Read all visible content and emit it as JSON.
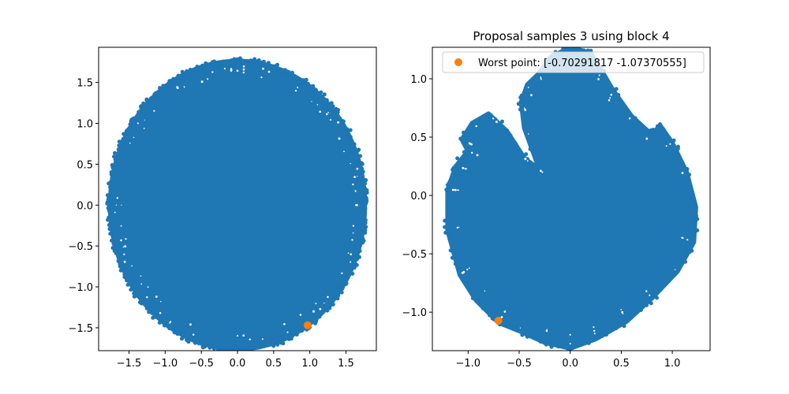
{
  "colors": {
    "samples": "#1f77b4",
    "worst_point": "#ff7f0e",
    "axes": "#000000",
    "background": "#ffffff",
    "legend_border": "#cccccc"
  },
  "chart_data": [
    {
      "type": "scatter",
      "title": "",
      "xlabel": "",
      "ylabel": "",
      "xlim": [
        -1.92,
        1.92
      ],
      "ylim": [
        -1.78,
        1.93
      ],
      "xticks": [
        -1.5,
        -1.0,
        -0.5,
        0.0,
        0.5,
        1.0,
        1.5
      ],
      "xtick_labels": [
        "−1.5",
        "−1.0",
        "−0.5",
        "0.0",
        "0.5",
        "1.0",
        "1.5"
      ],
      "yticks": [
        -1.5,
        -1.0,
        -0.5,
        0.0,
        0.5,
        1.0,
        1.5
      ],
      "ytick_labels": [
        "−1.5",
        "−1.0",
        "−0.5",
        "0.0",
        "0.5",
        "1.0",
        "1.5"
      ],
      "grid": false,
      "series": [
        {
          "kind": "dense-samples",
          "color": "#1f77b4",
          "region": "disk",
          "center": [
            0.0,
            0.0
          ],
          "radius": 1.76
        },
        {
          "kind": "point",
          "color": "#ff7f0e",
          "points": [
            [
              0.97,
              -1.47
            ]
          ]
        }
      ]
    },
    {
      "type": "scatter",
      "title": "Proposal samples 3 using block 4",
      "xlabel": "",
      "ylabel": "",
      "xlim": [
        -1.35,
        1.37
      ],
      "ylim": [
        -1.33,
        1.27
      ],
      "xticks": [
        -1.0,
        -0.5,
        0.0,
        0.5,
        1.0
      ],
      "xtick_labels": [
        "−1.0",
        "−0.5",
        "0.0",
        "0.5",
        "1.0"
      ],
      "yticks": [
        -1.0,
        -0.5,
        0.0,
        0.5,
        1.0
      ],
      "ytick_labels": [
        "−1.0",
        "−0.5",
        "0.0",
        "0.5",
        "1.0"
      ],
      "grid": false,
      "legend": {
        "placement": "upper-center",
        "entries": [
          {
            "label": "Worst point: [-0.70291817 -1.07370555]",
            "color": "#ff7f0e"
          }
        ]
      },
      "series": [
        {
          "kind": "dense-samples",
          "color": "#1f77b4",
          "region": "outline",
          "outline": [
            [
              -0.3,
              1.05
            ],
            [
              -0.2,
              1.18
            ],
            [
              0.0,
              1.27
            ],
            [
              0.2,
              1.22
            ],
            [
              0.3,
              1.08
            ],
            [
              0.42,
              0.9
            ],
            [
              0.6,
              0.68
            ],
            [
              0.8,
              0.52
            ],
            [
              0.88,
              0.6
            ],
            [
              1.0,
              0.45
            ],
            [
              1.14,
              0.2
            ],
            [
              1.23,
              -0.1
            ],
            [
              1.21,
              -0.4
            ],
            [
              1.05,
              -0.65
            ],
            [
              0.8,
              -0.88
            ],
            [
              0.55,
              -1.08
            ],
            [
              0.25,
              -1.23
            ],
            [
              0.0,
              -1.31
            ],
            [
              -0.25,
              -1.26
            ],
            [
              -0.5,
              -1.16
            ],
            [
              -0.7,
              -1.09
            ],
            [
              -0.92,
              -0.9
            ],
            [
              -1.08,
              -0.68
            ],
            [
              -1.2,
              -0.3
            ],
            [
              -1.2,
              0.05
            ],
            [
              -1.12,
              0.25
            ],
            [
              -1.0,
              0.38
            ],
            [
              -1.06,
              0.48
            ],
            [
              -0.96,
              0.62
            ],
            [
              -0.8,
              0.7
            ],
            [
              -0.62,
              0.55
            ],
            [
              -0.45,
              0.32
            ],
            [
              -0.3,
              0.22
            ],
            [
              -0.45,
              0.58
            ],
            [
              -0.48,
              0.8
            ],
            [
              -0.42,
              0.95
            ]
          ]
        },
        {
          "kind": "point",
          "color": "#ff7f0e",
          "points": [
            [
              -0.70291817,
              -1.07370555
            ]
          ]
        }
      ]
    }
  ]
}
